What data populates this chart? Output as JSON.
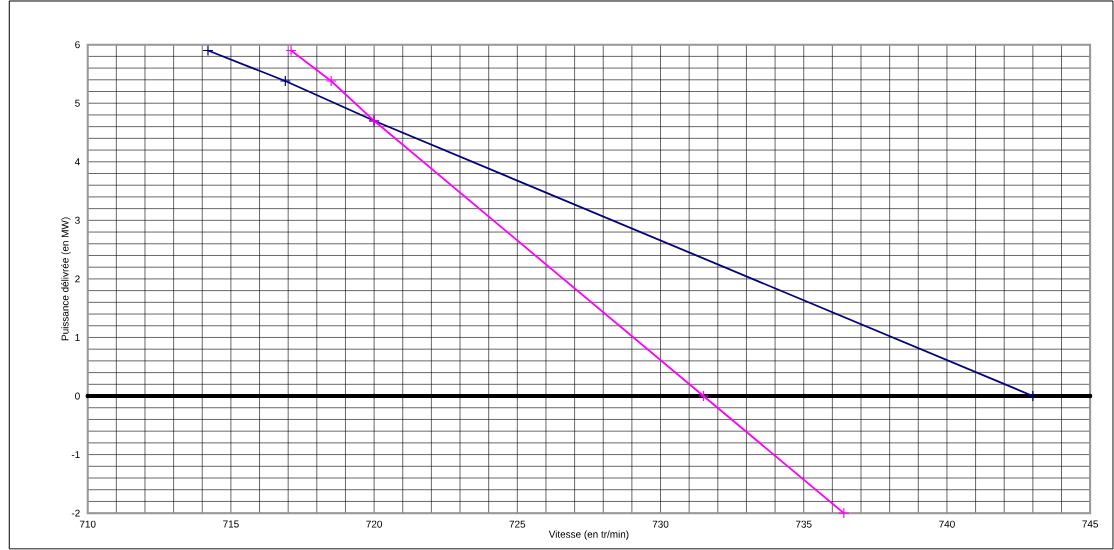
{
  "chart_data": {
    "type": "line",
    "xlabel": "Vitesse (en tr/min)",
    "ylabel": "Puissance délivrée (en MW)",
    "xlim": [
      710,
      745
    ],
    "ylim": [
      -2,
      6
    ],
    "grid": true,
    "xticks": [
      710,
      {
        "value": 711,
        "label": null
      },
      {
        "value": 712,
        "label": null
      },
      {
        "value": 713,
        "label": null
      },
      {
        "value": 714,
        "label": null
      },
      715,
      {
        "value": 716,
        "label": null
      },
      {
        "value": 717,
        "label": null
      },
      {
        "value": 718,
        "label": null
      },
      {
        "value": 719,
        "label": null
      },
      720,
      {
        "value": 721,
        "label": null
      },
      {
        "value": 722,
        "label": null
      },
      {
        "value": 723,
        "label": null
      },
      {
        "value": 724,
        "label": null
      },
      725,
      {
        "value": 726,
        "label": null
      },
      {
        "value": 727,
        "label": null
      },
      {
        "value": 728,
        "label": null
      },
      {
        "value": 729,
        "label": null
      },
      730,
      {
        "value": 731,
        "label": null
      },
      {
        "value": 732,
        "label": null
      },
      {
        "value": 733,
        "label": null
      },
      {
        "value": 734,
        "label": null
      },
      735,
      {
        "value": 736,
        "label": null
      },
      {
        "value": 737,
        "label": null
      },
      {
        "value": 738,
        "label": null
      },
      {
        "value": 739,
        "label": null
      },
      740,
      {
        "value": 741,
        "label": null
      },
      {
        "value": 742,
        "label": null
      },
      {
        "value": 743,
        "label": null
      },
      {
        "value": 744,
        "label": null
      },
      745
    ],
    "yticks": [
      -2,
      {
        "value": -1.8,
        "label": null
      },
      {
        "value": -1.6,
        "label": null
      },
      {
        "value": -1.4,
        "label": null
      },
      {
        "value": -1.2,
        "label": null
      },
      -1,
      {
        "value": -0.8,
        "label": null
      },
      {
        "value": -0.6,
        "label": null
      },
      {
        "value": -0.4,
        "label": null
      },
      {
        "value": -0.2,
        "label": null
      },
      0,
      {
        "value": 0.2,
        "label": null
      },
      {
        "value": 0.4,
        "label": null
      },
      {
        "value": 0.6,
        "label": null
      },
      {
        "value": 0.8,
        "label": null
      },
      1,
      {
        "value": 1.2,
        "label": null
      },
      {
        "value": 1.4,
        "label": null
      },
      {
        "value": 1.6,
        "label": null
      },
      {
        "value": 1.8,
        "label": null
      },
      2,
      {
        "value": 2.2,
        "label": null
      },
      {
        "value": 2.4,
        "label": null
      },
      {
        "value": 2.6,
        "label": null
      },
      {
        "value": 2.8,
        "label": null
      },
      3,
      {
        "value": 3.2,
        "label": null
      },
      {
        "value": 3.4,
        "label": null
      },
      {
        "value": 3.6,
        "label": null
      },
      {
        "value": 3.8,
        "label": null
      },
      4,
      {
        "value": 4.2,
        "label": null
      },
      {
        "value": 4.4,
        "label": null
      },
      {
        "value": 4.6,
        "label": null
      },
      {
        "value": 4.8,
        "label": null
      },
      5,
      {
        "value": 5.2,
        "label": null
      },
      {
        "value": 5.4,
        "label": null
      },
      {
        "value": 5.6,
        "label": null
      },
      {
        "value": 5.8,
        "label": null
      },
      6
    ],
    "series": [
      {
        "color": "#000000",
        "marker": "circle",
        "x": [
          710,
          715,
          720,
          725,
          730,
          735,
          740,
          745
        ],
        "values": [
          0,
          0,
          0,
          0,
          0,
          0,
          0,
          0
        ]
      },
      {
        "color": "#000080",
        "marker": "cross",
        "x": [
          714.2,
          716.9,
          720,
          743
        ],
        "values": [
          5.9,
          5.38,
          4.7,
          0
        ]
      },
      {
        "color": "#ff00ff",
        "marker": "cross",
        "x": [
          717.1,
          718.5,
          720,
          731.5,
          736.4
        ],
        "values": [
          5.9,
          5.38,
          4.7,
          0,
          -2
        ]
      }
    ]
  }
}
